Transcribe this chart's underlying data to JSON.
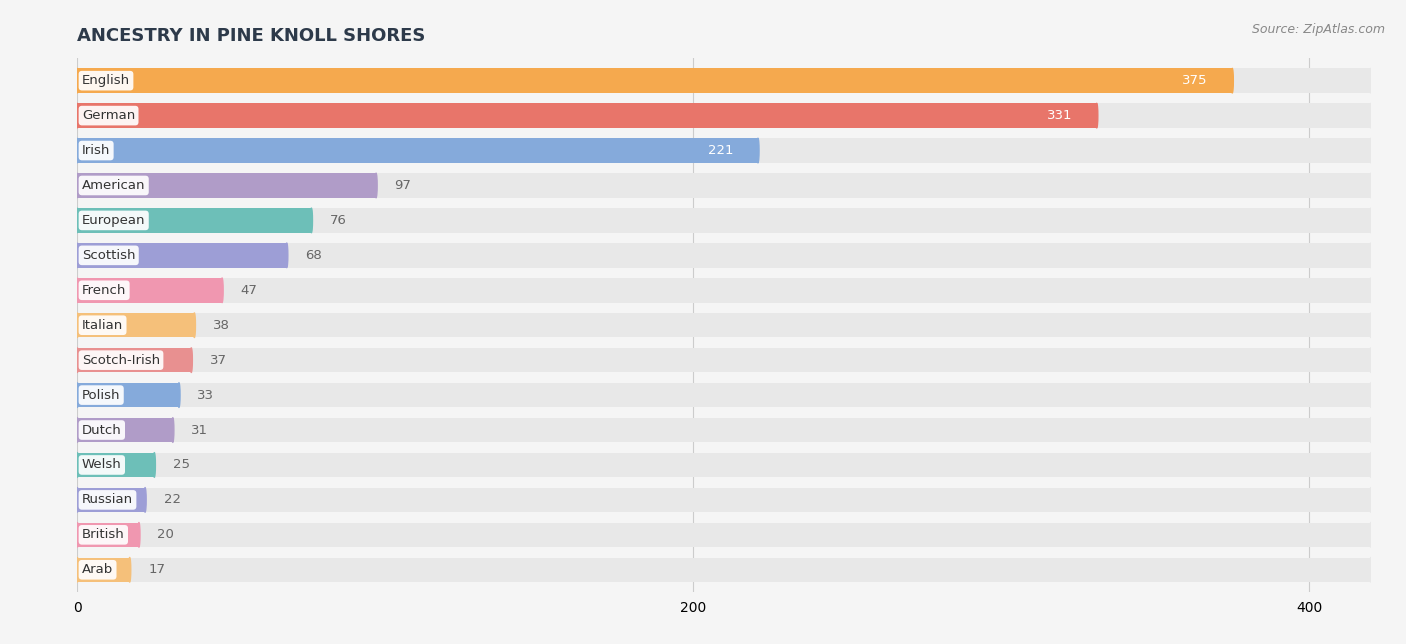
{
  "title": "ANCESTRY IN PINE KNOLL SHORES",
  "source": "Source: ZipAtlas.com",
  "categories": [
    "English",
    "German",
    "Irish",
    "American",
    "European",
    "Scottish",
    "French",
    "Italian",
    "Scotch-Irish",
    "Polish",
    "Dutch",
    "Welsh",
    "Russian",
    "British",
    "Arab"
  ],
  "values": [
    375,
    331,
    221,
    97,
    76,
    68,
    47,
    38,
    37,
    33,
    31,
    25,
    22,
    20,
    17
  ],
  "bar_colors": [
    "#F5A94E",
    "#E8756A",
    "#85AADB",
    "#B09CC8",
    "#6DBFB8",
    "#9D9ED6",
    "#F097B0",
    "#F5C07A",
    "#E89090",
    "#85AADB",
    "#B09CC8",
    "#6DBFB8",
    "#9D9ED6",
    "#F097B0",
    "#F5C07A"
  ],
  "xlim": [
    0,
    420
  ],
  "xticks": [
    0,
    200,
    400
  ],
  "background_color": "#f5f5f5",
  "bar_bg_color": "#e8e8e8",
  "title_color": "#2d3a4a",
  "value_color_inside": "#ffffff",
  "value_color_outside": "#666666",
  "source_color": "#888888"
}
